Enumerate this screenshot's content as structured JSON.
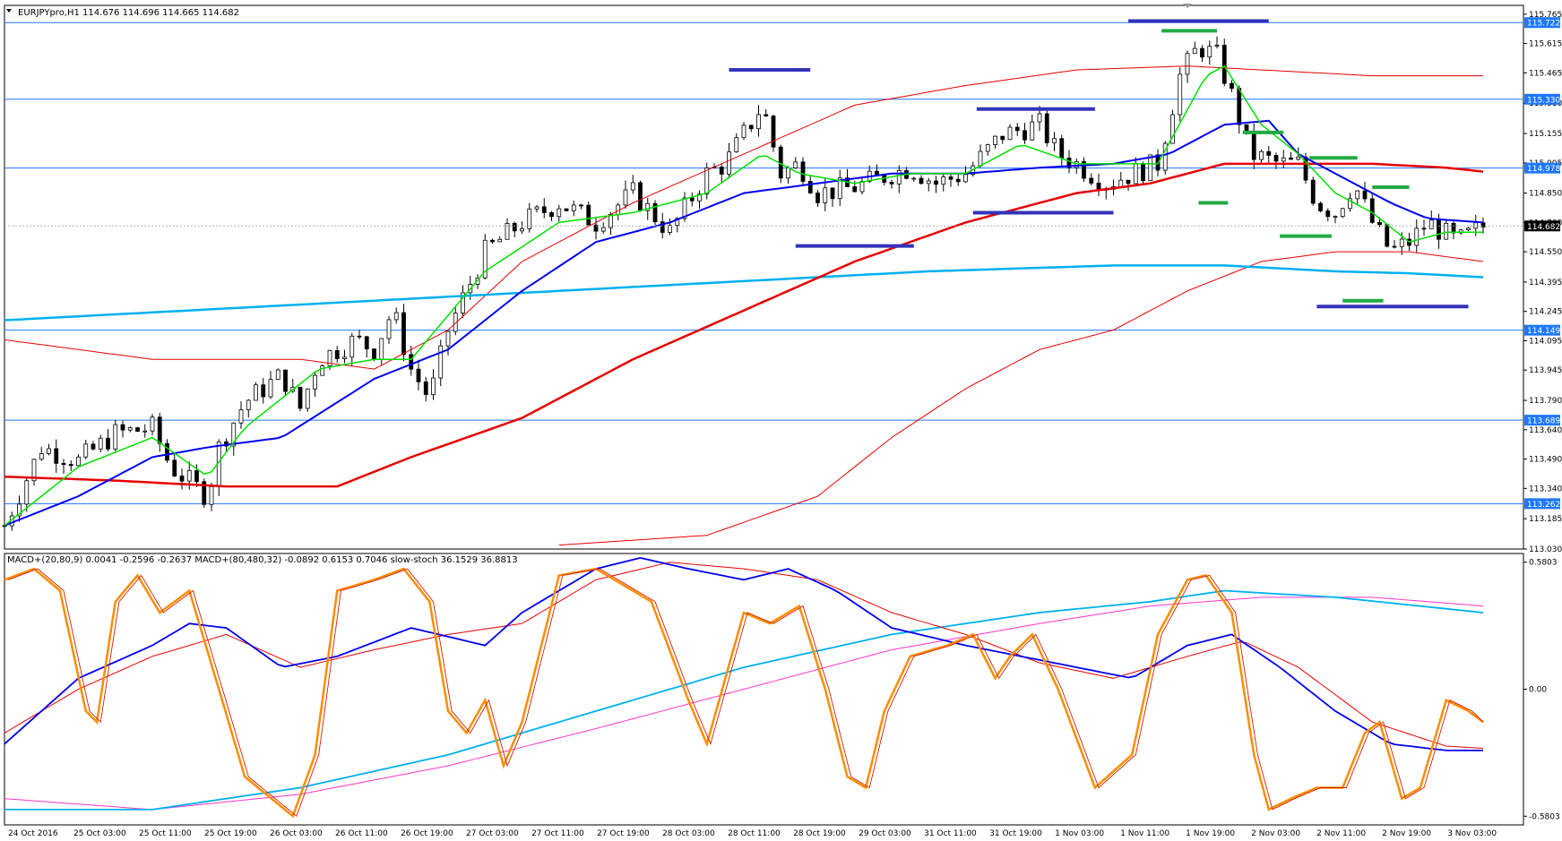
{
  "window": {
    "symbol_header": "EURJPYpro,H1  114.676 114.696 114.665 114.682",
    "indicators_header": "MACD+(20,80,9) 0.0041 -0.2596 -0.2637   MACD+(80,480,32) -0.0892 0.6153 0.7046   slow-stoch 36.1529 36.8813"
  },
  "colors": {
    "background": "#ffffff",
    "border": "#000000",
    "bull_candle": "#ffffff",
    "bear_candle": "#000000",
    "ma_fast": "#00e000",
    "ma_mid": "#0000ee",
    "ma_slow": "#e60000",
    "ma_long": "#00b0f0",
    "envelope": "#e60000",
    "level_line": "#1e78ff",
    "blue_marker": "#3333bb",
    "green_marker": "#22aa44",
    "stoch_main": "#ff8c00",
    "stoch_signal": "#cc2200",
    "macd_slow_main": "#00b0f0",
    "macd_slow_signal": "#ff33cc"
  },
  "chart_data": {
    "type": "candlestick",
    "symbol": "EURJPYpro",
    "timeframe": "H1",
    "price_axis": {
      "range": [
        113.03,
        115.81
      ],
      "ticks": [
        "115.765",
        "115.615",
        "115.465",
        "115.310",
        "115.155",
        "115.005",
        "114.850",
        "114.700",
        "114.550",
        "114.395",
        "114.245",
        "114.095",
        "113.945",
        "113.790",
        "113.640",
        "113.490",
        "113.340",
        "113.185",
        "113.030"
      ]
    },
    "horizontal_levels": [
      "115.722",
      "115.330",
      "114.978",
      "114.149",
      "113.689",
      "113.262"
    ],
    "current_price": "114.682",
    "time_axis_labels": [
      "24 Oct 2016",
      "25 Oct 03:00",
      "25 Oct 11:00",
      "25 Oct 19:00",
      "26 Oct 03:00",
      "26 Oct 11:00",
      "26 Oct 19:00",
      "27 Oct 03:00",
      "27 Oct 11:00",
      "27 Oct 19:00",
      "28 Oct 03:00",
      "28 Oct 11:00",
      "28 Oct 19:00",
      "29 Oct 03:00",
      "31 Oct 11:00",
      "31 Oct 19:00",
      "1 Nov 03:00",
      "1 Nov 11:00",
      "1 Nov 19:00",
      "2 Nov 03:00",
      "2 Nov 11:00",
      "2 Nov 19:00",
      "3 Nov 03:00"
    ],
    "close_path": [
      [
        0,
        113.15
      ],
      [
        10,
        113.55
      ],
      [
        20,
        113.48
      ],
      [
        30,
        113.62
      ],
      [
        40,
        113.65
      ],
      [
        45,
        113.45
      ],
      [
        55,
        113.3
      ],
      [
        58,
        113.55
      ],
      [
        65,
        113.78
      ],
      [
        75,
        113.92
      ],
      [
        80,
        113.75
      ],
      [
        85,
        114.0
      ],
      [
        95,
        114.1
      ],
      [
        100,
        114.05
      ],
      [
        105,
        114.25
      ],
      [
        110,
        113.95
      ],
      [
        115,
        113.8
      ],
      [
        120,
        114.15
      ],
      [
        130,
        114.55
      ],
      [
        140,
        114.7
      ],
      [
        150,
        114.8
      ],
      [
        160,
        114.7
      ],
      [
        170,
        114.85
      ],
      [
        180,
        114.65
      ],
      [
        190,
        114.95
      ],
      [
        195,
        115.0
      ],
      [
        200,
        115.15
      ],
      [
        205,
        115.3
      ],
      [
        210,
        114.95
      ],
      [
        215,
        115.0
      ],
      [
        220,
        114.85
      ],
      [
        230,
        114.88
      ],
      [
        240,
        114.95
      ],
      [
        245,
        114.98
      ],
      [
        252,
        114.9
      ],
      [
        260,
        114.95
      ],
      [
        270,
        115.15
      ],
      [
        280,
        115.2
      ],
      [
        285,
        115.05
      ],
      [
        290,
        115.0
      ],
      [
        298,
        114.9
      ],
      [
        305,
        114.95
      ],
      [
        312,
        115.0
      ],
      [
        318,
        115.45
      ],
      [
        323,
        115.6
      ],
      [
        328,
        115.55
      ],
      [
        332,
        115.35
      ],
      [
        337,
        115.05
      ],
      [
        345,
        115.0
      ],
      [
        350,
        115.0
      ],
      [
        355,
        114.8
      ],
      [
        360,
        114.75
      ],
      [
        365,
        114.9
      ],
      [
        370,
        114.7
      ],
      [
        375,
        114.55
      ],
      [
        380,
        114.6
      ],
      [
        385,
        114.7
      ],
      [
        393,
        114.6
      ],
      [
        400,
        114.68
      ]
    ],
    "ma_fast": [
      [
        0,
        113.15
      ],
      [
        20,
        113.45
      ],
      [
        40,
        113.6
      ],
      [
        55,
        113.4
      ],
      [
        65,
        113.65
      ],
      [
        85,
        113.95
      ],
      [
        100,
        114.0
      ],
      [
        110,
        114.0
      ],
      [
        130,
        114.45
      ],
      [
        150,
        114.7
      ],
      [
        170,
        114.75
      ],
      [
        190,
        114.85
      ],
      [
        205,
        115.05
      ],
      [
        215,
        114.95
      ],
      [
        230,
        114.9
      ],
      [
        245,
        114.95
      ],
      [
        260,
        114.95
      ],
      [
        275,
        115.1
      ],
      [
        290,
        115.0
      ],
      [
        312,
        115.0
      ],
      [
        325,
        115.45
      ],
      [
        330,
        115.5
      ],
      [
        340,
        115.2
      ],
      [
        350,
        115.05
      ],
      [
        360,
        114.85
      ],
      [
        370,
        114.75
      ],
      [
        380,
        114.6
      ],
      [
        390,
        114.65
      ],
      [
        400,
        114.65
      ]
    ],
    "ma_mid": [
      [
        0,
        113.15
      ],
      [
        20,
        113.3
      ],
      [
        40,
        113.5
      ],
      [
        55,
        113.55
      ],
      [
        75,
        113.6
      ],
      [
        100,
        113.9
      ],
      [
        120,
        114.05
      ],
      [
        140,
        114.35
      ],
      [
        160,
        114.6
      ],
      [
        180,
        114.7
      ],
      [
        200,
        114.85
      ],
      [
        220,
        114.9
      ],
      [
        240,
        114.95
      ],
      [
        260,
        114.95
      ],
      [
        280,
        114.98
      ],
      [
        300,
        115.0
      ],
      [
        315,
        115.05
      ],
      [
        330,
        115.2
      ],
      [
        342,
        115.22
      ],
      [
        350,
        115.05
      ],
      [
        365,
        114.9
      ],
      [
        375,
        114.8
      ],
      [
        385,
        114.72
      ],
      [
        400,
        114.7
      ]
    ],
    "ma_slow": [
      [
        0,
        113.4
      ],
      [
        30,
        113.38
      ],
      [
        60,
        113.35
      ],
      [
        90,
        113.35
      ],
      [
        110,
        113.5
      ],
      [
        140,
        113.7
      ],
      [
        170,
        114.0
      ],
      [
        200,
        114.25
      ],
      [
        230,
        114.5
      ],
      [
        260,
        114.7
      ],
      [
        290,
        114.85
      ],
      [
        310,
        114.9
      ],
      [
        330,
        115.0
      ],
      [
        350,
        115.0
      ],
      [
        370,
        115.0
      ],
      [
        390,
        114.98
      ],
      [
        400,
        114.96
      ]
    ],
    "ma_long": [
      [
        0,
        114.2
      ],
      [
        50,
        114.25
      ],
      [
        100,
        114.3
      ],
      [
        150,
        114.35
      ],
      [
        200,
        114.4
      ],
      [
        250,
        114.45
      ],
      [
        300,
        114.48
      ],
      [
        330,
        114.48
      ],
      [
        360,
        114.45
      ],
      [
        380,
        114.44
      ],
      [
        400,
        114.42
      ]
    ],
    "envelope_upper": [
      [
        0,
        114.1
      ],
      [
        40,
        114.0
      ],
      [
        80,
        114.0
      ],
      [
        100,
        113.95
      ],
      [
        120,
        114.15
      ],
      [
        140,
        114.5
      ],
      [
        170,
        114.8
      ],
      [
        200,
        115.05
      ],
      [
        230,
        115.3
      ],
      [
        260,
        115.4
      ],
      [
        290,
        115.48
      ],
      [
        320,
        115.5
      ],
      [
        340,
        115.48
      ],
      [
        370,
        115.45
      ],
      [
        400,
        115.45
      ]
    ],
    "envelope_lower": [
      [
        150,
        113.05
      ],
      [
        190,
        113.1
      ],
      [
        220,
        113.3
      ],
      [
        240,
        113.6
      ],
      [
        260,
        113.85
      ],
      [
        280,
        114.05
      ],
      [
        300,
        114.15
      ],
      [
        320,
        114.35
      ],
      [
        340,
        114.5
      ],
      [
        360,
        114.55
      ],
      [
        380,
        114.55
      ],
      [
        400,
        114.5
      ]
    ],
    "blue_markers": [
      [
        196,
        218,
        115.48
      ],
      [
        214,
        246,
        114.58
      ],
      [
        263,
        295,
        115.28
      ],
      [
        262,
        300,
        114.75
      ],
      [
        304,
        342,
        115.73
      ],
      [
        355,
        396,
        114.27
      ]
    ],
    "green_markers": [
      [
        313,
        328,
        115.68
      ],
      [
        323,
        331,
        114.8
      ],
      [
        335,
        346,
        115.16
      ],
      [
        345,
        359,
        114.63
      ],
      [
        353,
        366,
        115.03
      ],
      [
        362,
        373,
        114.3
      ],
      [
        370,
        380,
        114.88
      ]
    ],
    "indicator_axis": {
      "range": [
        -0.62,
        0.62
      ],
      "ticks": [
        "0.5803",
        "0.00",
        "-0.5803"
      ]
    },
    "stoch_path": [
      [
        0,
        0.5
      ],
      [
        8,
        0.55
      ],
      [
        15,
        0.45
      ],
      [
        22,
        -0.1
      ],
      [
        25,
        -0.15
      ],
      [
        30,
        0.4
      ],
      [
        36,
        0.52
      ],
      [
        42,
        0.35
      ],
      [
        50,
        0.45
      ],
      [
        58,
        0.0
      ],
      [
        65,
        -0.4
      ],
      [
        78,
        -0.58
      ],
      [
        84,
        -0.3
      ],
      [
        90,
        0.45
      ],
      [
        100,
        0.5
      ],
      [
        108,
        0.55
      ],
      [
        115,
        0.4
      ],
      [
        120,
        -0.1
      ],
      [
        125,
        -0.2
      ],
      [
        130,
        -0.05
      ],
      [
        135,
        -0.35
      ],
      [
        140,
        -0.15
      ],
      [
        150,
        0.52
      ],
      [
        160,
        0.55
      ],
      [
        175,
        0.4
      ],
      [
        185,
        -0.05
      ],
      [
        190,
        -0.25
      ],
      [
        200,
        0.35
      ],
      [
        207,
        0.3
      ],
      [
        215,
        0.38
      ],
      [
        222,
        0.0
      ],
      [
        228,
        -0.4
      ],
      [
        233,
        -0.45
      ],
      [
        238,
        -0.1
      ],
      [
        245,
        0.15
      ],
      [
        255,
        0.2
      ],
      [
        262,
        0.25
      ],
      [
        268,
        0.05
      ],
      [
        272,
        0.15
      ],
      [
        278,
        0.25
      ],
      [
        285,
        0.0
      ],
      [
        295,
        -0.45
      ],
      [
        305,
        -0.3
      ],
      [
        312,
        0.25
      ],
      [
        320,
        0.5
      ],
      [
        325,
        0.52
      ],
      [
        332,
        0.35
      ],
      [
        338,
        -0.3
      ],
      [
        342,
        -0.55
      ],
      [
        348,
        -0.5
      ],
      [
        355,
        -0.45
      ],
      [
        362,
        -0.45
      ],
      [
        368,
        -0.2
      ],
      [
        372,
        -0.15
      ],
      [
        378,
        -0.5
      ],
      [
        383,
        -0.45
      ],
      [
        390,
        -0.05
      ],
      [
        396,
        -0.1
      ],
      [
        400,
        -0.15
      ]
    ],
    "macd_fast_main": [
      [
        0,
        -0.25
      ],
      [
        20,
        0.05
      ],
      [
        40,
        0.2
      ],
      [
        50,
        0.3
      ],
      [
        60,
        0.28
      ],
      [
        75,
        0.1
      ],
      [
        90,
        0.15
      ],
      [
        110,
        0.28
      ],
      [
        130,
        0.2
      ],
      [
        140,
        0.35
      ],
      [
        150,
        0.45
      ],
      [
        160,
        0.55
      ],
      [
        172,
        0.6
      ],
      [
        185,
        0.55
      ],
      [
        200,
        0.5
      ],
      [
        212,
        0.55
      ],
      [
        225,
        0.45
      ],
      [
        240,
        0.28
      ],
      [
        260,
        0.2
      ],
      [
        290,
        0.1
      ],
      [
        305,
        0.05
      ],
      [
        320,
        0.2
      ],
      [
        332,
        0.25
      ],
      [
        345,
        0.1
      ],
      [
        360,
        -0.1
      ],
      [
        375,
        -0.25
      ],
      [
        390,
        -0.28
      ],
      [
        400,
        -0.28
      ]
    ],
    "macd_fast_signal": [
      [
        0,
        -0.2
      ],
      [
        20,
        0.0
      ],
      [
        40,
        0.15
      ],
      [
        60,
        0.25
      ],
      [
        80,
        0.1
      ],
      [
        100,
        0.18
      ],
      [
        120,
        0.25
      ],
      [
        140,
        0.3
      ],
      [
        160,
        0.5
      ],
      [
        180,
        0.58
      ],
      [
        200,
        0.55
      ],
      [
        220,
        0.5
      ],
      [
        240,
        0.35
      ],
      [
        260,
        0.25
      ],
      [
        280,
        0.12
      ],
      [
        300,
        0.05
      ],
      [
        320,
        0.15
      ],
      [
        335,
        0.22
      ],
      [
        350,
        0.1
      ],
      [
        370,
        -0.15
      ],
      [
        390,
        -0.26
      ],
      [
        400,
        -0.27
      ]
    ],
    "macd_slow_main": [
      [
        0,
        -0.55
      ],
      [
        40,
        -0.55
      ],
      [
        80,
        -0.45
      ],
      [
        120,
        -0.3
      ],
      [
        160,
        -0.1
      ],
      [
        200,
        0.1
      ],
      [
        240,
        0.25
      ],
      [
        280,
        0.35
      ],
      [
        310,
        0.4
      ],
      [
        330,
        0.45
      ],
      [
        360,
        0.42
      ],
      [
        400,
        0.35
      ]
    ],
    "macd_slow_signal": [
      [
        0,
        -0.5
      ],
      [
        40,
        -0.55
      ],
      [
        80,
        -0.48
      ],
      [
        120,
        -0.35
      ],
      [
        160,
        -0.18
      ],
      [
        200,
        0.0
      ],
      [
        240,
        0.18
      ],
      [
        280,
        0.3
      ],
      [
        310,
        0.38
      ],
      [
        340,
        0.42
      ],
      [
        370,
        0.42
      ],
      [
        400,
        0.38
      ]
    ]
  }
}
